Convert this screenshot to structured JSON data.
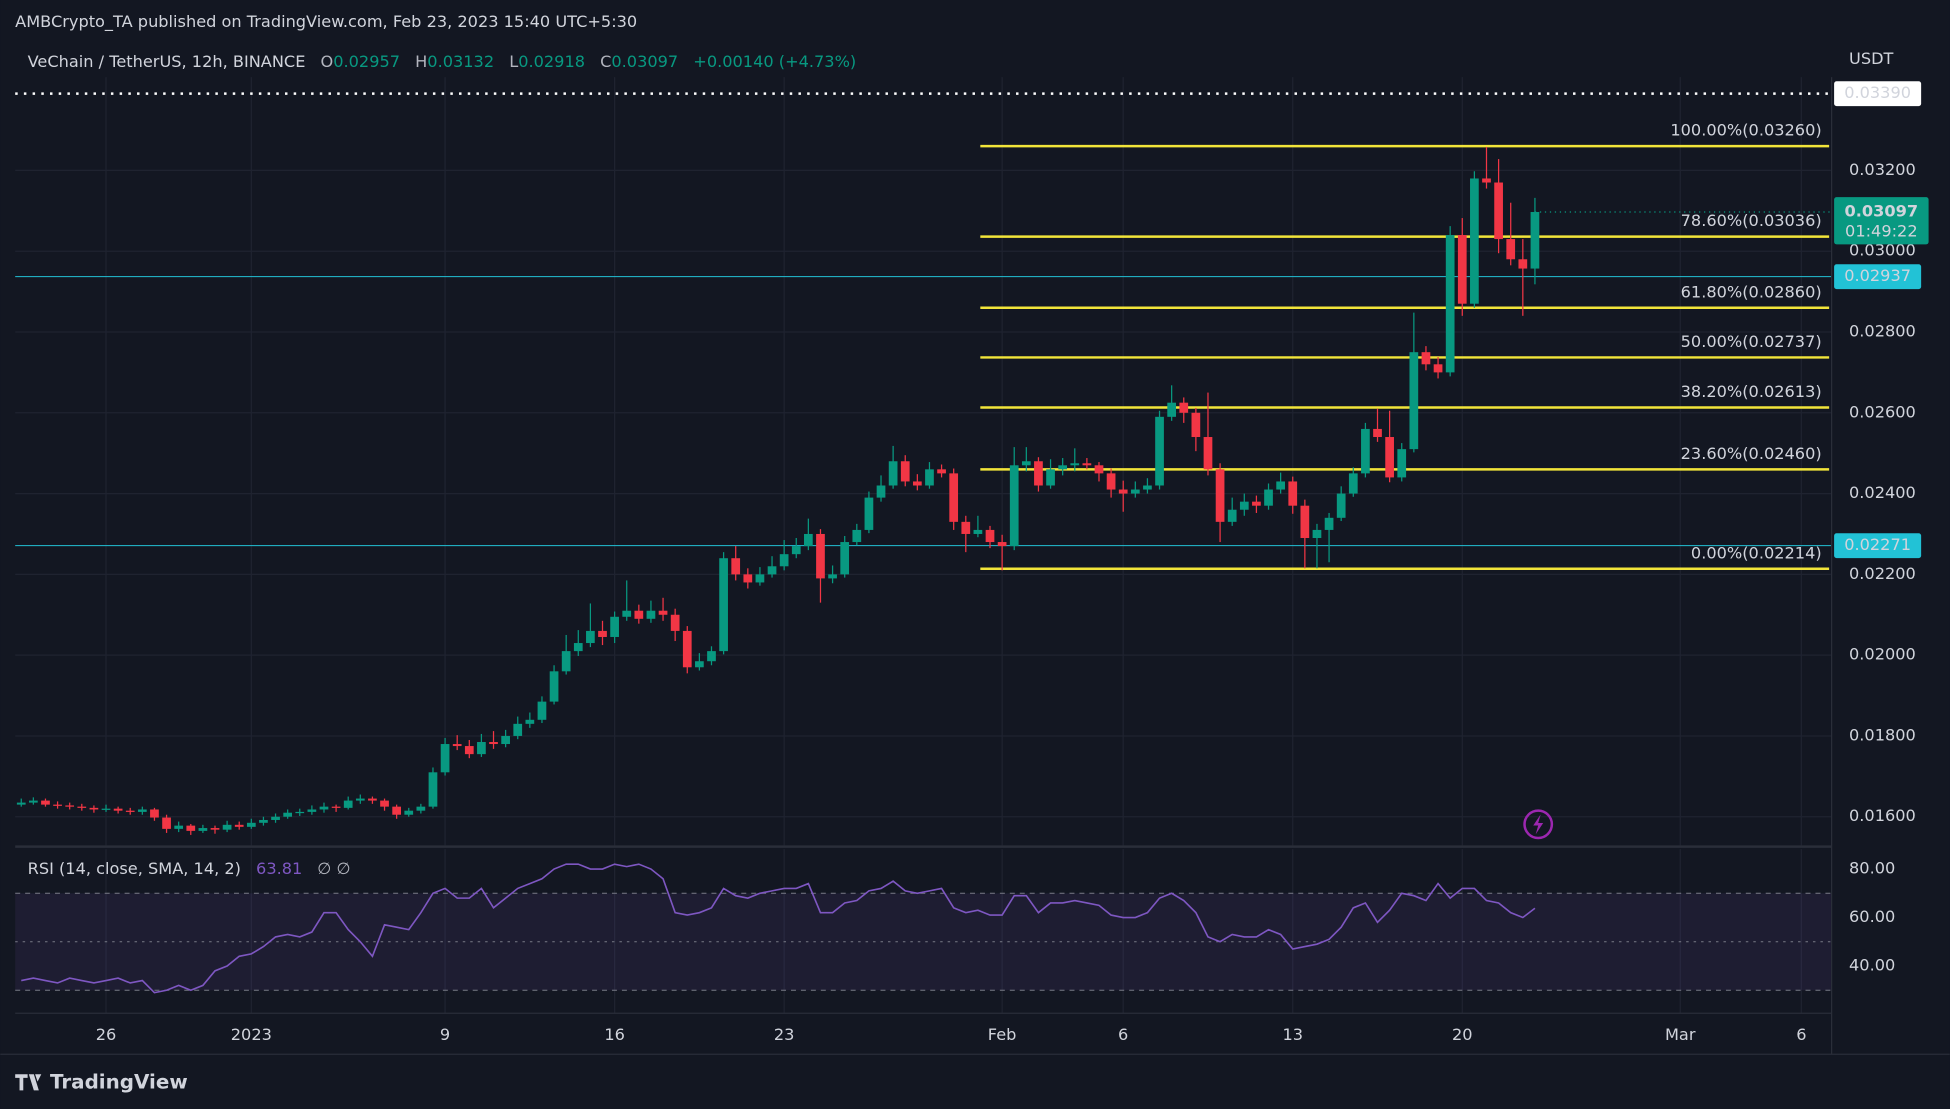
{
  "header": {
    "publisher": "AMBCrypto_TA published on TradingView.com, Feb 23, 2023 15:40 UTC+5:30"
  },
  "footer": {
    "logo": "TradingView"
  },
  "chart_data": {
    "type": "candlestick",
    "symbol": "VeChain / TetherUS, 12h, BINANCE",
    "ohlc_labels": [
      "O",
      "H",
      "L",
      "C"
    ],
    "change": "+0.00140 (+4.73%)",
    "currency": "USDT",
    "colors": {
      "up": "#089981",
      "down": "#f23645",
      "fib": "#f2e53a",
      "level": "#22c2d6",
      "rsi": "#7e57c2"
    },
    "grid": true,
    "xlim": [
      -9.75,
      65.25
    ],
    "xticks": [
      {
        "value": -6,
        "label": "26"
      },
      {
        "value": 0,
        "label": "2023"
      },
      {
        "value": 8,
        "label": "9"
      },
      {
        "value": 15,
        "label": "16"
      },
      {
        "value": 22,
        "label": "23"
      },
      {
        "value": 31,
        "label": "Feb"
      },
      {
        "value": 36,
        "label": "6"
      },
      {
        "value": 43,
        "label": "13"
      },
      {
        "value": 50,
        "label": "20"
      },
      {
        "value": 59,
        "label": "Mar"
      },
      {
        "value": 64,
        "label": "6"
      }
    ],
    "ylim": [
      0.01529,
      0.03431
    ],
    "yticks": [
      {
        "value": 0.016,
        "label": "0.01600"
      },
      {
        "value": 0.018,
        "label": "0.01800"
      },
      {
        "value": 0.02,
        "label": "0.02000"
      },
      {
        "value": 0.022,
        "label": "0.02200"
      },
      {
        "value": 0.024,
        "label": "0.02400"
      },
      {
        "value": 0.026,
        "label": "0.02600"
      },
      {
        "value": 0.028,
        "label": "0.02800"
      },
      {
        "value": 0.03,
        "label": "0.03000"
      },
      {
        "value": 0.032,
        "label": "0.03200"
      }
    ],
    "x": [
      -9.5,
      -9,
      -8.5,
      -8,
      -7.5,
      -7,
      -6.5,
      -6,
      -5.5,
      -5,
      -4.5,
      -4,
      -3.5,
      -3,
      -2.5,
      -2,
      -1.5,
      -1,
      -0.5,
      0,
      0.5,
      1,
      1.5,
      2,
      2.5,
      3,
      3.5,
      4,
      4.5,
      5,
      5.5,
      6,
      6.5,
      7,
      7.5,
      8,
      8.5,
      9,
      9.5,
      10,
      10.5,
      11,
      11.5,
      12,
      12.5,
      13,
      13.5,
      14,
      14.5,
      15,
      15.5,
      16,
      16.5,
      17,
      17.5,
      18,
      18.5,
      19,
      19.5,
      20,
      20.5,
      21,
      21.5,
      22,
      22.5,
      23,
      23.5,
      24,
      24.5,
      25,
      25.5,
      26,
      26.5,
      27,
      27.5,
      28,
      28.5,
      29,
      29.5,
      30,
      30.5,
      31,
      31.5,
      32,
      32.5,
      33,
      33.5,
      34,
      34.5,
      35,
      35.5,
      36,
      36.5,
      37,
      37.5,
      38,
      38.5,
      39,
      39.5,
      40,
      40.5,
      41,
      41.5,
      42,
      42.5,
      43,
      43.5,
      44,
      44.5,
      45,
      45.5,
      46,
      46.5,
      47,
      47.5,
      48,
      48.5,
      49,
      49.5,
      50,
      50.5,
      51,
      51.5,
      52,
      52.5,
      53
    ],
    "candles": [
      [
        0.0163,
        0.01645,
        0.01625,
        0.01635
      ],
      [
        0.01635,
        0.01648,
        0.0163,
        0.0164
      ],
      [
        0.0164,
        0.01645,
        0.01625,
        0.0163
      ],
      [
        0.0163,
        0.01638,
        0.0162,
        0.01628
      ],
      [
        0.01628,
        0.01635,
        0.01618,
        0.01625
      ],
      [
        0.01625,
        0.01632,
        0.01615,
        0.01622
      ],
      [
        0.01622,
        0.01628,
        0.0161,
        0.01618
      ],
      [
        0.01618,
        0.0163,
        0.01612,
        0.0162
      ],
      [
        0.0162,
        0.01625,
        0.01608,
        0.01615
      ],
      [
        0.01615,
        0.01622,
        0.01605,
        0.01612
      ],
      [
        0.01612,
        0.01625,
        0.01605,
        0.01618
      ],
      [
        0.01618,
        0.01622,
        0.0159,
        0.01598
      ],
      [
        0.01598,
        0.01605,
        0.0156,
        0.0157
      ],
      [
        0.0157,
        0.01588,
        0.01562,
        0.01578
      ],
      [
        0.01578,
        0.01582,
        0.01555,
        0.01565
      ],
      [
        0.01565,
        0.0158,
        0.0156,
        0.01572
      ],
      [
        0.01572,
        0.01578,
        0.01558,
        0.01568
      ],
      [
        0.01568,
        0.0159,
        0.01562,
        0.0158
      ],
      [
        0.0158,
        0.01588,
        0.01568,
        0.01575
      ],
      [
        0.01575,
        0.01595,
        0.0157,
        0.01585
      ],
      [
        0.01585,
        0.016,
        0.01578,
        0.01592
      ],
      [
        0.01592,
        0.01608,
        0.01585,
        0.016
      ],
      [
        0.016,
        0.01618,
        0.01595,
        0.0161
      ],
      [
        0.0161,
        0.0162,
        0.01602,
        0.01612
      ],
      [
        0.01612,
        0.01628,
        0.01605,
        0.01618
      ],
      [
        0.01618,
        0.01635,
        0.0161,
        0.01625
      ],
      [
        0.01625,
        0.0163,
        0.01612,
        0.01622
      ],
      [
        0.01622,
        0.0165,
        0.01618,
        0.0164
      ],
      [
        0.0164,
        0.01655,
        0.01632,
        0.01645
      ],
      [
        0.01645,
        0.0165,
        0.01632,
        0.0164
      ],
      [
        0.0164,
        0.01645,
        0.01615,
        0.01625
      ],
      [
        0.01625,
        0.0163,
        0.01595,
        0.01605
      ],
      [
        0.01605,
        0.01622,
        0.016,
        0.01615
      ],
      [
        0.01615,
        0.01632,
        0.01608,
        0.01625
      ],
      [
        0.01625,
        0.01722,
        0.0162,
        0.0171
      ],
      [
        0.0171,
        0.01795,
        0.01702,
        0.0178
      ],
      [
        0.0178,
        0.01802,
        0.01765,
        0.01775
      ],
      [
        0.01775,
        0.0179,
        0.01745,
        0.01755
      ],
      [
        0.01755,
        0.01805,
        0.01748,
        0.01785
      ],
      [
        0.01785,
        0.01812,
        0.01768,
        0.0178
      ],
      [
        0.0178,
        0.01815,
        0.01772,
        0.018
      ],
      [
        0.018,
        0.01848,
        0.01792,
        0.0183
      ],
      [
        0.0183,
        0.01858,
        0.0182,
        0.0184
      ],
      [
        0.0184,
        0.01898,
        0.01832,
        0.01885
      ],
      [
        0.01885,
        0.01975,
        0.01878,
        0.0196
      ],
      [
        0.0196,
        0.0205,
        0.01952,
        0.0201
      ],
      [
        0.0201,
        0.02062,
        0.01998,
        0.0203
      ],
      [
        0.0203,
        0.02128,
        0.0202,
        0.0206
      ],
      [
        0.0206,
        0.02085,
        0.02025,
        0.02045
      ],
      [
        0.02045,
        0.02108,
        0.0203,
        0.02095
      ],
      [
        0.02095,
        0.02185,
        0.02085,
        0.0211
      ],
      [
        0.0211,
        0.02125,
        0.02078,
        0.0209
      ],
      [
        0.0209,
        0.02135,
        0.0208,
        0.0211
      ],
      [
        0.0211,
        0.02142,
        0.02085,
        0.021
      ],
      [
        0.021,
        0.02115,
        0.02035,
        0.0206
      ],
      [
        0.0206,
        0.02072,
        0.01955,
        0.0197
      ],
      [
        0.0197,
        0.02005,
        0.01962,
        0.01985
      ],
      [
        0.01985,
        0.02022,
        0.01975,
        0.0201
      ],
      [
        0.0201,
        0.02255,
        0.02002,
        0.0224
      ],
      [
        0.0224,
        0.0227,
        0.02185,
        0.022
      ],
      [
        0.022,
        0.02215,
        0.02165,
        0.0218
      ],
      [
        0.0218,
        0.02218,
        0.02172,
        0.022
      ],
      [
        0.022,
        0.02245,
        0.02192,
        0.0222
      ],
      [
        0.0222,
        0.02285,
        0.0221,
        0.0225
      ],
      [
        0.0225,
        0.0229,
        0.0224,
        0.0227
      ],
      [
        0.0227,
        0.02338,
        0.0226,
        0.023
      ],
      [
        0.023,
        0.02312,
        0.0213,
        0.0219
      ],
      [
        0.0219,
        0.02222,
        0.02178,
        0.022
      ],
      [
        0.022,
        0.02295,
        0.02192,
        0.0228
      ],
      [
        0.0228,
        0.02325,
        0.02272,
        0.0231
      ],
      [
        0.0231,
        0.02405,
        0.02302,
        0.0239
      ],
      [
        0.0239,
        0.02445,
        0.0238,
        0.0242
      ],
      [
        0.0242,
        0.02518,
        0.02412,
        0.0248
      ],
      [
        0.0248,
        0.02495,
        0.02418,
        0.0243
      ],
      [
        0.0243,
        0.02448,
        0.02408,
        0.0242
      ],
      [
        0.0242,
        0.02478,
        0.02412,
        0.0246
      ],
      [
        0.0246,
        0.02472,
        0.0244,
        0.0245
      ],
      [
        0.0245,
        0.02462,
        0.0231,
        0.0233
      ],
      [
        0.0233,
        0.02345,
        0.02255,
        0.023
      ],
      [
        0.023,
        0.02345,
        0.02292,
        0.0231
      ],
      [
        0.0231,
        0.0232,
        0.02265,
        0.0228
      ],
      [
        0.0228,
        0.02298,
        0.0221,
        0.0227
      ],
      [
        0.0227,
        0.02515,
        0.0226,
        0.0247
      ],
      [
        0.0247,
        0.02515,
        0.02455,
        0.0248
      ],
      [
        0.0248,
        0.0249,
        0.02405,
        0.0242
      ],
      [
        0.0242,
        0.02485,
        0.02412,
        0.0246
      ],
      [
        0.0246,
        0.02488,
        0.02445,
        0.0247
      ],
      [
        0.0247,
        0.02512,
        0.02455,
        0.02475
      ],
      [
        0.02475,
        0.02488,
        0.0246,
        0.0247
      ],
      [
        0.0247,
        0.02478,
        0.0243,
        0.0245
      ],
      [
        0.0245,
        0.02462,
        0.0239,
        0.0241
      ],
      [
        0.0241,
        0.02432,
        0.02355,
        0.024
      ],
      [
        0.024,
        0.0243,
        0.0239,
        0.0241
      ],
      [
        0.0241,
        0.02438,
        0.024,
        0.0242
      ],
      [
        0.0242,
        0.02605,
        0.0241,
        0.0259
      ],
      [
        0.0259,
        0.02668,
        0.0258,
        0.02625
      ],
      [
        0.02625,
        0.02638,
        0.02575,
        0.026
      ],
      [
        0.026,
        0.02612,
        0.02505,
        0.0254
      ],
      [
        0.0254,
        0.0265,
        0.02445,
        0.0246
      ],
      [
        0.0246,
        0.02475,
        0.0228,
        0.0233
      ],
      [
        0.0233,
        0.0239,
        0.0232,
        0.0236
      ],
      [
        0.0236,
        0.024,
        0.02345,
        0.0238
      ],
      [
        0.0238,
        0.02395,
        0.02352,
        0.0237
      ],
      [
        0.0237,
        0.02425,
        0.0236,
        0.0241
      ],
      [
        0.0241,
        0.02452,
        0.024,
        0.0243
      ],
      [
        0.0243,
        0.02442,
        0.0235,
        0.0237
      ],
      [
        0.0237,
        0.02385,
        0.02215,
        0.0229
      ],
      [
        0.0229,
        0.02325,
        0.02215,
        0.0231
      ],
      [
        0.0231,
        0.02352,
        0.0223,
        0.0234
      ],
      [
        0.0234,
        0.02418,
        0.02332,
        0.024
      ],
      [
        0.024,
        0.02465,
        0.02392,
        0.0245
      ],
      [
        0.0245,
        0.02575,
        0.0244,
        0.0256
      ],
      [
        0.0256,
        0.0261,
        0.02528,
        0.0254
      ],
      [
        0.0254,
        0.02605,
        0.02428,
        0.0244
      ],
      [
        0.0244,
        0.02525,
        0.0243,
        0.0251
      ],
      [
        0.0251,
        0.02848,
        0.02502,
        0.0275
      ],
      [
        0.0275,
        0.02765,
        0.02705,
        0.0272
      ],
      [
        0.0272,
        0.02738,
        0.02685,
        0.027
      ],
      [
        0.027,
        0.03062,
        0.0269,
        0.0304
      ],
      [
        0.0304,
        0.03082,
        0.0284,
        0.0287
      ],
      [
        0.0287,
        0.03198,
        0.0286,
        0.0318
      ],
      [
        0.0318,
        0.03258,
        0.03155,
        0.0317
      ],
      [
        0.0317,
        0.03228,
        0.02995,
        0.0303
      ],
      [
        0.0303,
        0.0312,
        0.02965,
        0.0298
      ],
      [
        0.0298,
        0.0303,
        0.0284,
        0.02957
      ],
      [
        0.02957,
        0.03132,
        0.02918,
        0.03097
      ]
    ],
    "fib": {
      "x_start": 30.1,
      "levels": [
        {
          "value": 0.0326,
          "label": "100.00%(0.03260)"
        },
        {
          "value": 0.03036,
          "label": "78.60%(0.03036)"
        },
        {
          "value": 0.0286,
          "label": "61.80%(0.02860)"
        },
        {
          "value": 0.02737,
          "label": "50.00%(0.02737)"
        },
        {
          "value": 0.02613,
          "label": "38.20%(0.02613)"
        },
        {
          "value": 0.0246,
          "label": "23.60%(0.02460)"
        },
        {
          "value": 0.02214,
          "label": "0.00%(0.02214)"
        }
      ]
    },
    "levels": [
      0.02937,
      0.02271
    ],
    "high_line": {
      "value": 0.0339,
      "label": "0.03390"
    },
    "countdown": "01:49:22",
    "rsi": {
      "title": "RSI (14, close, SMA, 14, 2)",
      "extra": "∅ ∅",
      "ylim": [
        20.5,
        88.2
      ],
      "yticks": [
        {
          "value": 40,
          "label": "40.00"
        },
        {
          "value": 60,
          "label": "60.00"
        },
        {
          "value": 80,
          "label": "80.00"
        }
      ],
      "bands": [
        30,
        50,
        70
      ],
      "values": [
        34,
        35,
        34,
        33,
        35,
        34,
        33,
        34,
        35,
        33,
        34,
        29,
        30,
        32,
        30,
        32,
        38,
        40,
        44,
        45,
        48,
        52,
        53,
        52,
        54,
        62,
        62,
        55,
        50,
        44,
        57,
        56,
        55,
        62,
        70,
        72,
        68,
        68,
        72,
        64,
        68,
        72,
        74,
        76,
        80,
        82,
        82,
        80,
        80,
        82,
        81,
        82,
        80,
        76,
        62,
        61,
        62,
        64,
        72,
        69,
        68,
        70,
        71,
        72,
        72,
        74,
        62,
        62,
        66,
        67,
        71,
        72,
        75,
        71,
        70,
        71,
        72,
        64,
        62,
        63,
        61,
        61,
        69,
        69,
        62,
        66,
        66,
        67,
        66,
        65,
        61,
        60,
        60,
        62,
        68,
        70,
        67,
        62,
        52,
        50,
        53,
        52,
        52,
        55,
        53,
        47,
        48,
        49,
        51,
        56,
        64,
        66,
        58,
        63,
        70,
        69,
        67,
        74,
        68,
        72,
        72,
        67,
        66,
        62,
        60,
        63.81
      ]
    }
  }
}
